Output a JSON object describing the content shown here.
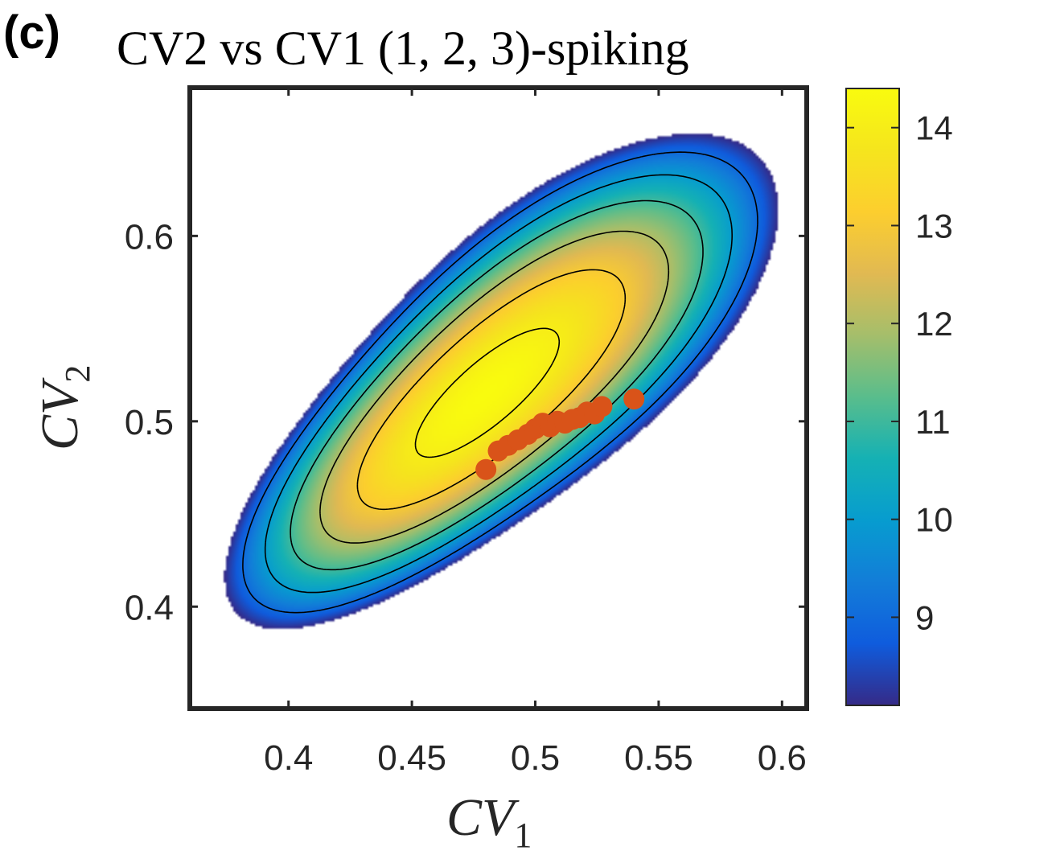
{
  "panel_label": "(c)",
  "chart_data": {
    "type": "heatmap",
    "title": "CV2 vs CV1 (1, 2, 3)-spiking",
    "xlabel": {
      "base": "CV",
      "subscript": "1"
    },
    "ylabel": {
      "base": "CV",
      "subscript": "2"
    },
    "xlim": [
      0.36,
      0.61
    ],
    "ylim": [
      0.345,
      0.68
    ],
    "xticks": [
      0.4,
      0.45,
      0.5,
      0.55,
      0.6
    ],
    "xtick_labels": [
      "0.4",
      "0.45",
      "0.5",
      "0.55",
      "0.6"
    ],
    "yticks": [
      0.4,
      0.5,
      0.6
    ],
    "ytick_labels": [
      "0.4",
      "0.5",
      "0.6"
    ],
    "grid": false,
    "colormap": "parula",
    "colorbar": {
      "range": [
        8.1,
        14.4
      ],
      "ticks": [
        9,
        10,
        11,
        12,
        13,
        14
      ],
      "tick_labels": [
        "9",
        "10",
        "11",
        "12",
        "13",
        "14"
      ]
    },
    "density": {
      "peak_value": 14.4,
      "cutoff_value": 8.1,
      "contour_levels": [
        9,
        10,
        11,
        12,
        13,
        14
      ],
      "components": [
        {
          "center": [
            0.465,
            0.497
          ],
          "sd": [
            0.04,
            0.048
          ],
          "corr": 0.75,
          "weight": 0.62
        },
        {
          "center": [
            0.512,
            0.552
          ],
          "sd": [
            0.042,
            0.05
          ],
          "corr": 0.6,
          "weight": 0.38
        }
      ]
    },
    "points": {
      "color": "#d95319",
      "x": [
        0.48,
        0.485,
        0.489,
        0.493,
        0.497,
        0.5,
        0.503,
        0.506,
        0.509,
        0.512,
        0.515,
        0.518,
        0.521,
        0.524,
        0.527,
        0.54
      ],
      "y": [
        0.474,
        0.484,
        0.487,
        0.49,
        0.493,
        0.496,
        0.499,
        0.497,
        0.5,
        0.499,
        0.501,
        0.502,
        0.505,
        0.504,
        0.508,
        0.512
      ]
    },
    "colors": {
      "axis": "#262626",
      "contour": "#000000",
      "points": "#d95319"
    }
  }
}
